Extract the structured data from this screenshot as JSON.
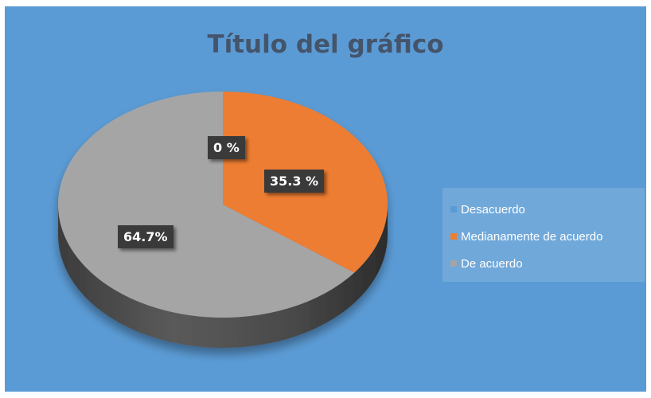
{
  "chart_data": {
    "type": "pie",
    "title": "Título del gráfico",
    "categories": [
      "Desacuerdo",
      "Medianamente de acuerdo",
      "De acuerdo"
    ],
    "values": [
      0,
      35.3,
      64.7
    ],
    "data_labels": [
      "0 %",
      "35.3 %",
      "64.7%"
    ],
    "colors": [
      "#5b9bd5",
      "#ed7d31",
      "#a5a5a5"
    ],
    "legend_position": "right",
    "style": "3d-pie"
  },
  "background_color": "#5b9bd5"
}
